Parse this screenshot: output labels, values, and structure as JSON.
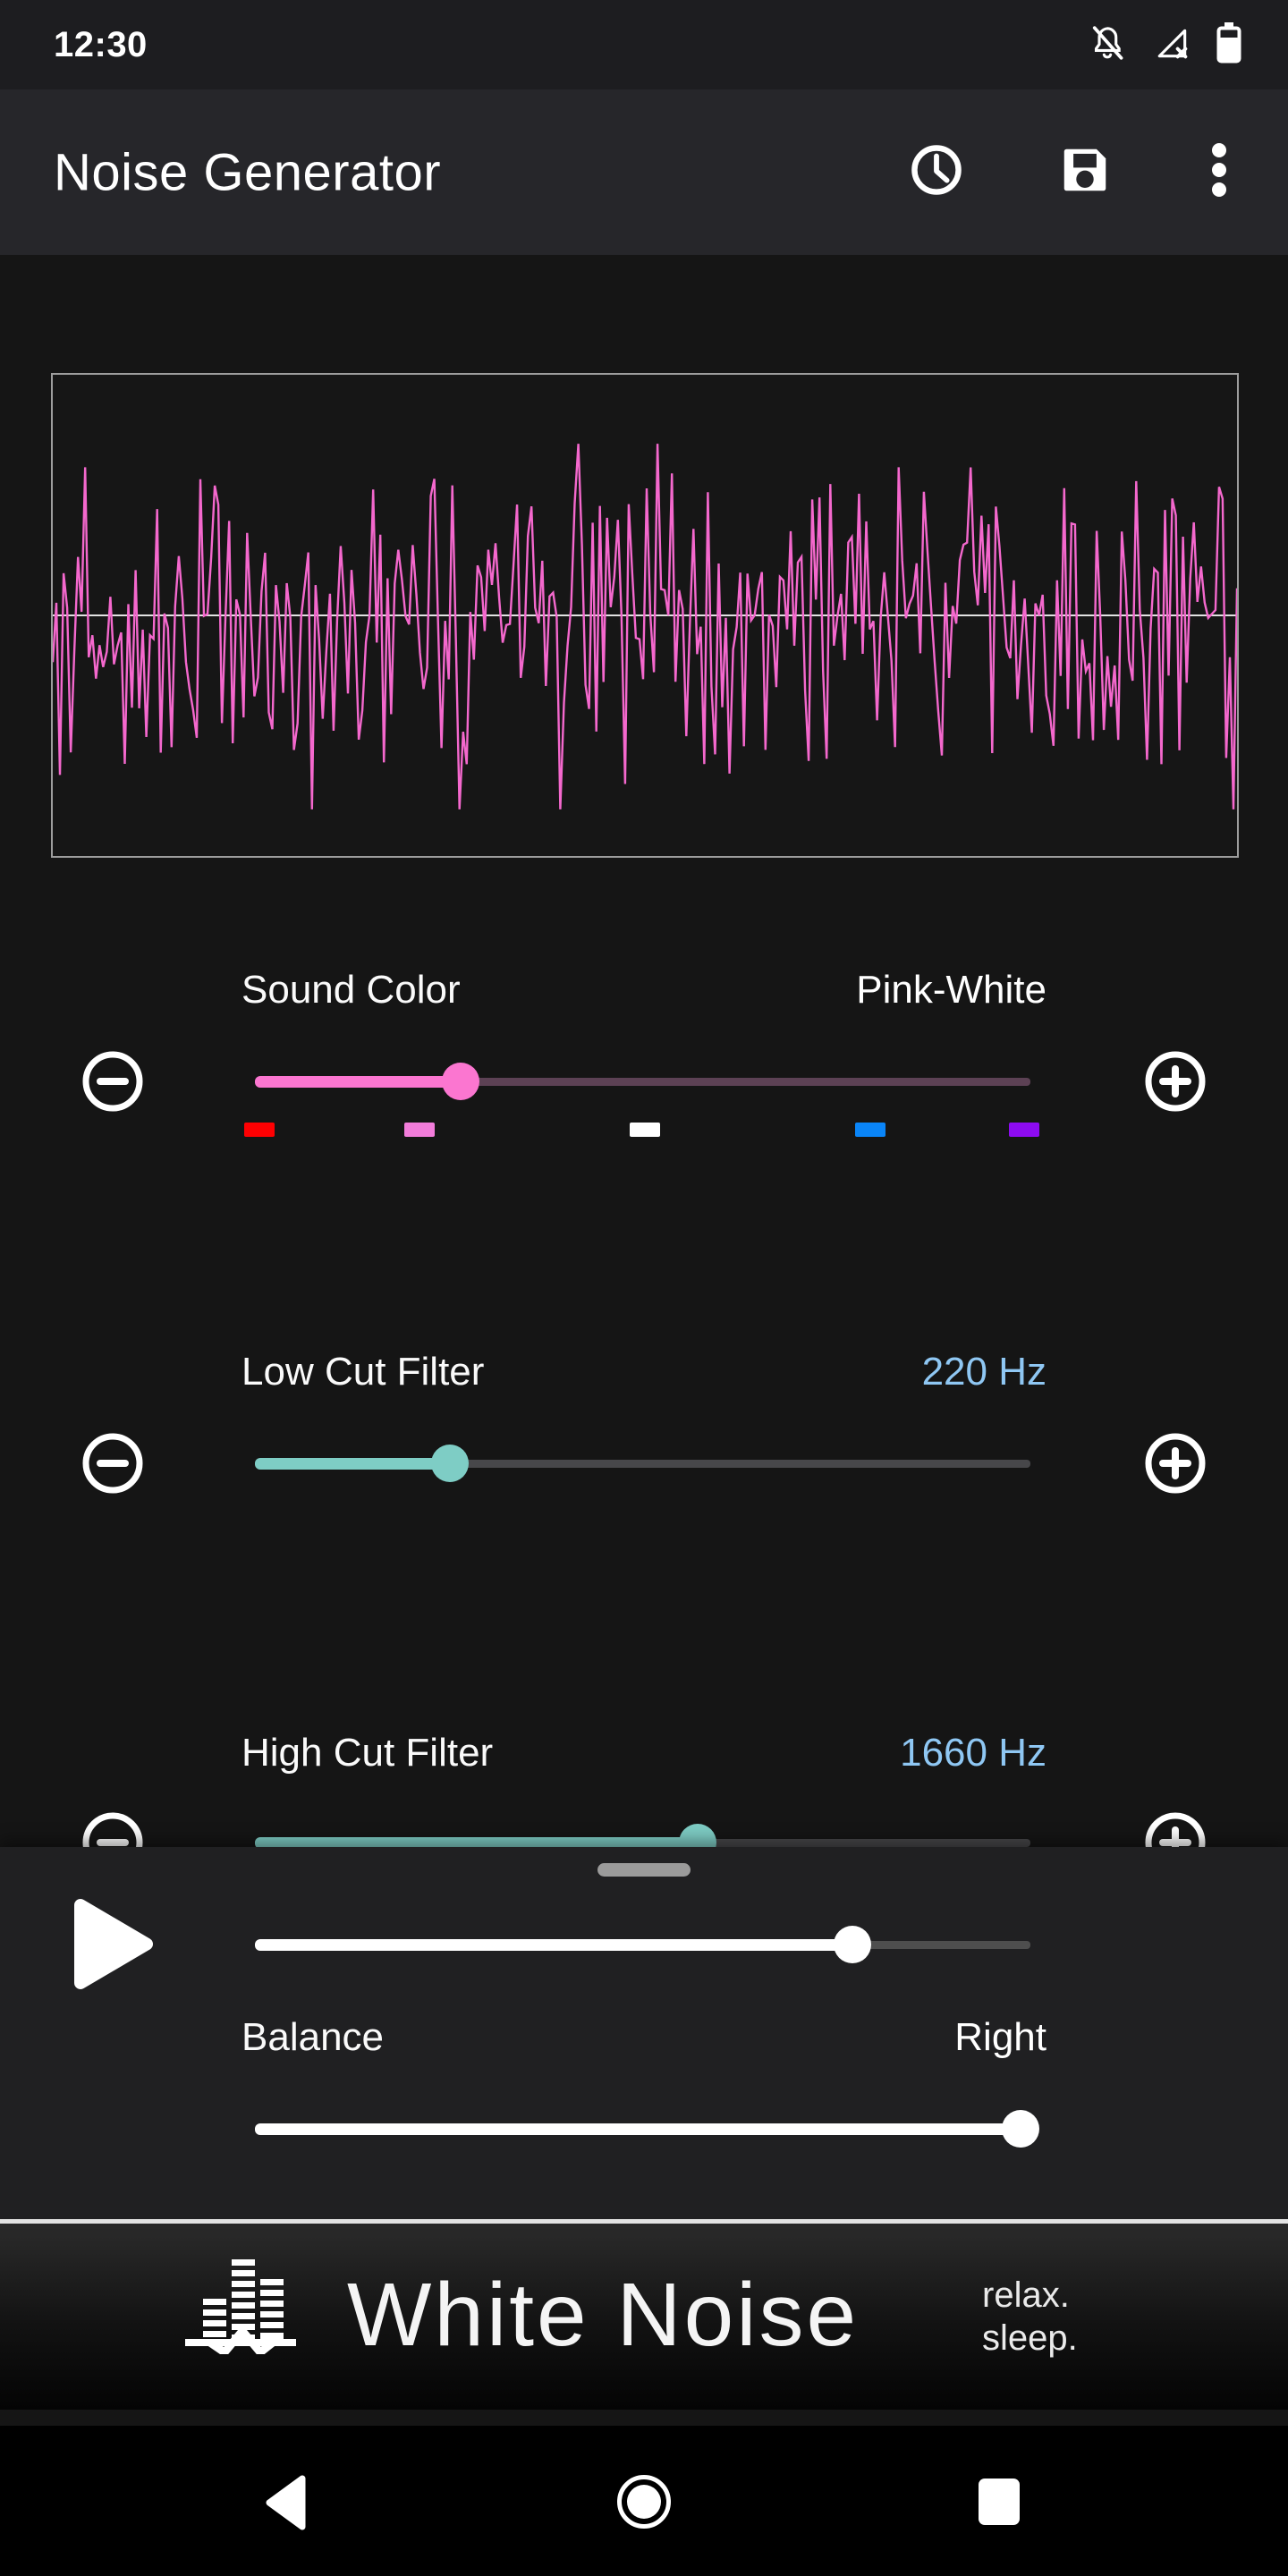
{
  "status_bar": {
    "time": "12:30",
    "icons": [
      "notifications-off",
      "mobile-signal-off",
      "battery"
    ]
  },
  "app_bar": {
    "title": "Noise Generator",
    "actions": [
      "sleep-timer",
      "save-preset",
      "overflow-menu"
    ]
  },
  "waveform": {
    "type": "noise-waveform",
    "color": "#f468cd",
    "center_line_color": "#e2e2e2",
    "seed": 12,
    "points": 330,
    "amplitude": 0.62
  },
  "sliders": {
    "sound_color": {
      "label": "Sound Color",
      "value": "Pink-White",
      "percent": 26.5,
      "active_color": "#fb76d0",
      "inactive_color": "#5c4154",
      "swatches": [
        {
          "name": "red-noise",
          "color": "#fe0002",
          "position_pct": 0.6
        },
        {
          "name": "pink-noise",
          "color": "#f27cda",
          "position_pct": 21.2
        },
        {
          "name": "white-noise",
          "color": "#ffffff",
          "position_pct": 50.3
        },
        {
          "name": "blue-noise",
          "color": "#0a85f8",
          "position_pct": 79.4
        },
        {
          "name": "violet-noise",
          "color": "#8d0bf1",
          "position_pct": 99.2
        }
      ]
    },
    "low_cut": {
      "label": "Low Cut Filter",
      "value": "220 Hz",
      "percent": 25.1,
      "active_color": "#7ecdc5",
      "inactive_color": "#47474a",
      "value_color": "#8fc7f3"
    },
    "high_cut": {
      "label": "High Cut Filter",
      "value": "1660 Hz",
      "percent": 57.1,
      "active_color": "#7ecdc5",
      "inactive_color": "#47474a",
      "value_color": "#8fc7f3"
    }
  },
  "player": {
    "volume": {
      "percent": 77,
      "active_color": "#ffffff",
      "inactive_color": "#4e4e4e"
    },
    "balance": {
      "label": "Balance",
      "value": "Right",
      "percent": 98.7,
      "active_color": "#ffffff",
      "inactive_color": "#4e4e4e"
    }
  },
  "ad": {
    "app_name": "White Noise",
    "tagline_top": "relax.",
    "tagline_bottom": "sleep."
  }
}
